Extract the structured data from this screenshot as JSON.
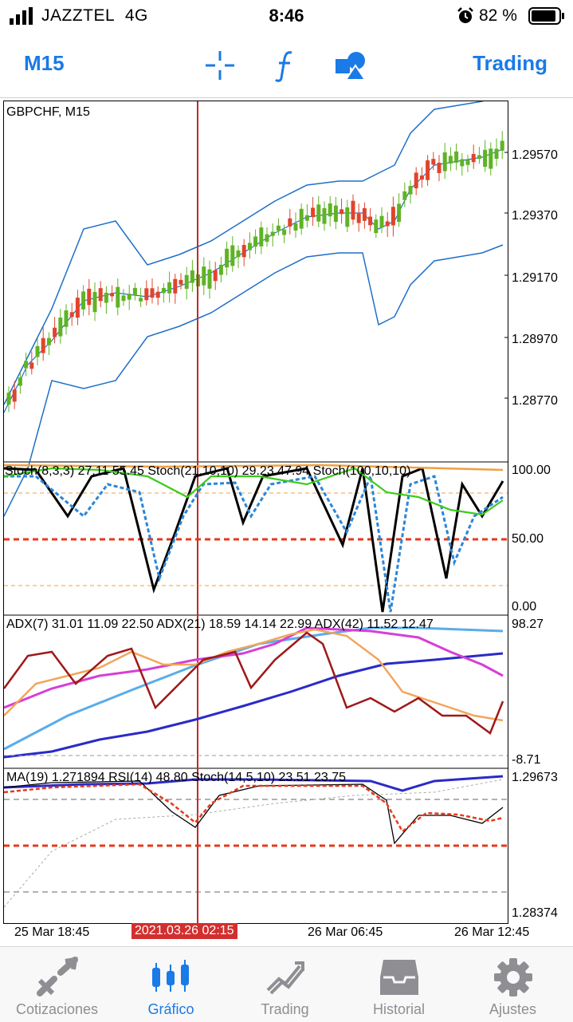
{
  "status_bar": {
    "carrier": "JAZZTEL",
    "network": "4G",
    "time": "8:46",
    "battery_percent": "82 %"
  },
  "toolbar": {
    "period_label": "M15",
    "trading_label": "Trading",
    "icons": [
      "crosshair-icon",
      "function-icon",
      "objects-icon"
    ],
    "accent_color": "#1a7ae6"
  },
  "chart": {
    "symbol_label": "GBPCHF, M15",
    "price_axis": [
      "1.29570",
      "1.29370",
      "1.29170",
      "1.28970",
      "1.28770"
    ],
    "stoch_header": "Stoch(8,3,3) 27.11 55.45 Stoch(21,10,10) 29.23 47.94 Stoch(100,10,10)",
    "stoch_axis": [
      "100.00",
      "50.00",
      "0.00"
    ],
    "adx_header": "ADX(7) 31.01 11.09 22.50 ADX(21) 18.59 14.14 22.99 ADX(42) 11.52 12.47",
    "adx_axis": [
      "98.27",
      "-8.71"
    ],
    "rsi_header": "MA(19) 1.271894 RSI(14) 48.80 Stoch(14,5,10) 23.51 23.75",
    "rsi_axis": [
      "1.29673",
      "1.28374"
    ],
    "time_axis": [
      "25 Mar 18:45",
      "26 Mar 06:45",
      "26 Mar 12:45"
    ],
    "cursor_time": "2021.03.26 02:15",
    "colors": {
      "bull": "#5fb324",
      "bear": "#e0442c",
      "band": "#1f6fc9",
      "cursor": "#c62828"
    }
  },
  "tabbar": {
    "items": [
      {
        "label": "Cotizaciones",
        "icon": "quotes-icon",
        "active": false
      },
      {
        "label": "Gráfico",
        "icon": "chart-icon",
        "active": true
      },
      {
        "label": "Trading",
        "icon": "trading-icon",
        "active": false
      },
      {
        "label": "Historial",
        "icon": "history-icon",
        "active": false
      },
      {
        "label": "Ajustes",
        "icon": "settings-icon",
        "active": false
      }
    ]
  }
}
